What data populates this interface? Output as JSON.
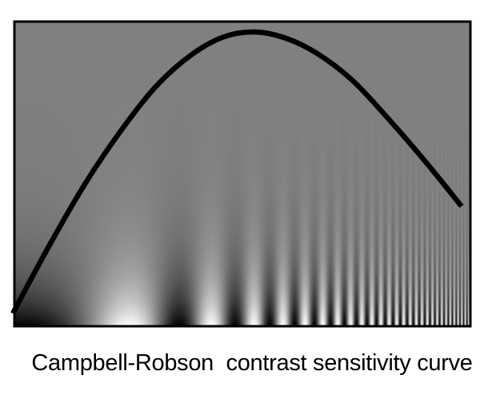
{
  "figure": {
    "caption": "Campbell-Robson  contrast sensitivity curve",
    "background_gray": "#808080",
    "frame_color": "#000000",
    "curve_color": "#000000",
    "grating": {
      "description_type": "sinusoidal grating, spatial frequency increasing left to right, contrast increasing bottom to top",
      "min_cycles_per_width": 1,
      "max_cycles_per_width": 140
    },
    "curve": {
      "shape": "inverted-U",
      "peak_position_fraction": 0.53,
      "peak_value_fraction": 0.97
    }
  }
}
